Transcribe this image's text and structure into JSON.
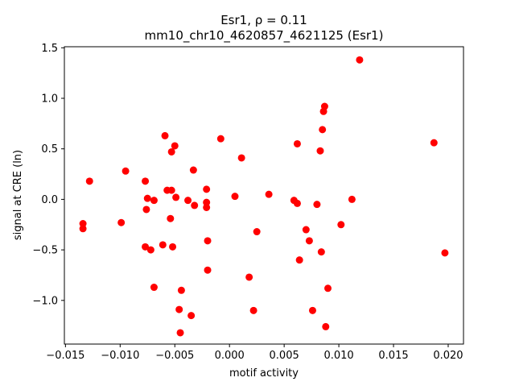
{
  "chart_data": {
    "type": "scatter",
    "title_line1": "Esr1, ρ = 0.11",
    "title_line2": "mm10_chr10_4620857_4621125 (Esr1)",
    "xlabel": "motif activity",
    "ylabel": "signal at CRE (ln)",
    "xlim": [
      -0.0151,
      0.0214
    ],
    "ylim": [
      -1.4321,
      1.5104
    ],
    "xticks": [
      -0.015,
      -0.01,
      -0.005,
      0.0,
      0.005,
      0.01,
      0.015,
      0.02
    ],
    "xtick_labels": [
      "−0.015",
      "−0.010",
      "−0.005",
      "0.000",
      "0.005",
      "0.010",
      "0.015",
      "0.020"
    ],
    "yticks": [
      -1.0,
      -0.5,
      0.0,
      0.5,
      1.0,
      1.5
    ],
    "ytick_labels": [
      "−1.0",
      "−0.5",
      "0.0",
      "0.5",
      "1.0",
      "1.5"
    ],
    "grid": false,
    "marker_color": "#ff0000",
    "points": [
      {
        "x": 0.0119,
        "y": 1.38
      },
      {
        "x": 0.0087,
        "y": 0.92
      },
      {
        "x": 0.0086,
        "y": 0.87
      },
      {
        "x": 0.0085,
        "y": 0.69
      },
      {
        "x": 0.0187,
        "y": 0.56
      },
      {
        "x": 0.0062,
        "y": 0.55
      },
      {
        "x": 0.0083,
        "y": 0.48
      },
      {
        "x": -0.0059,
        "y": 0.63
      },
      {
        "x": -0.0008,
        "y": 0.6
      },
      {
        "x": -0.005,
        "y": 0.53
      },
      {
        "x": -0.0053,
        "y": 0.47
      },
      {
        "x": 0.0011,
        "y": 0.41
      },
      {
        "x": -0.0033,
        "y": 0.29
      },
      {
        "x": -0.0095,
        "y": 0.28
      },
      {
        "x": -0.0128,
        "y": 0.18
      },
      {
        "x": -0.0077,
        "y": 0.18
      },
      {
        "x": -0.0021,
        "y": 0.1
      },
      {
        "x": -0.0057,
        "y": 0.09
      },
      {
        "x": -0.0053,
        "y": 0.09
      },
      {
        "x": 0.0036,
        "y": 0.05
      },
      {
        "x": 0.0005,
        "y": 0.03
      },
      {
        "x": -0.0049,
        "y": 0.02
      },
      {
        "x": -0.0075,
        "y": 0.01
      },
      {
        "x": -0.0069,
        "y": -0.01
      },
      {
        "x": -0.0038,
        "y": -0.01
      },
      {
        "x": 0.0112,
        "y": 0.0
      },
      {
        "x": 0.0059,
        "y": -0.01
      },
      {
        "x": -0.0021,
        "y": -0.03
      },
      {
        "x": 0.0062,
        "y": -0.04
      },
      {
        "x": 0.008,
        "y": -0.05
      },
      {
        "x": -0.0032,
        "y": -0.06
      },
      {
        "x": -0.0021,
        "y": -0.08
      },
      {
        "x": -0.0076,
        "y": -0.1
      },
      {
        "x": -0.0054,
        "y": -0.19
      },
      {
        "x": -0.0099,
        "y": -0.23
      },
      {
        "x": -0.0134,
        "y": -0.24
      },
      {
        "x": 0.0102,
        "y": -0.25
      },
      {
        "x": -0.0134,
        "y": -0.29
      },
      {
        "x": 0.007,
        "y": -0.3
      },
      {
        "x": 0.0025,
        "y": -0.32
      },
      {
        "x": 0.0073,
        "y": -0.41
      },
      {
        "x": -0.002,
        "y": -0.41
      },
      {
        "x": -0.0061,
        "y": -0.45
      },
      {
        "x": -0.0077,
        "y": -0.47
      },
      {
        "x": -0.0052,
        "y": -0.47
      },
      {
        "x": -0.0072,
        "y": -0.5
      },
      {
        "x": 0.0084,
        "y": -0.52
      },
      {
        "x": 0.0197,
        "y": -0.53
      },
      {
        "x": 0.0064,
        "y": -0.6
      },
      {
        "x": -0.002,
        "y": -0.7
      },
      {
        "x": 0.0018,
        "y": -0.77
      },
      {
        "x": -0.0069,
        "y": -0.87
      },
      {
        "x": 0.009,
        "y": -0.88
      },
      {
        "x": -0.0044,
        "y": -0.9
      },
      {
        "x": -0.0046,
        "y": -1.09
      },
      {
        "x": 0.0022,
        "y": -1.1
      },
      {
        "x": 0.0076,
        "y": -1.1
      },
      {
        "x": -0.0035,
        "y": -1.15
      },
      {
        "x": 0.0088,
        "y": -1.26
      },
      {
        "x": -0.0045,
        "y": -1.32
      }
    ]
  }
}
